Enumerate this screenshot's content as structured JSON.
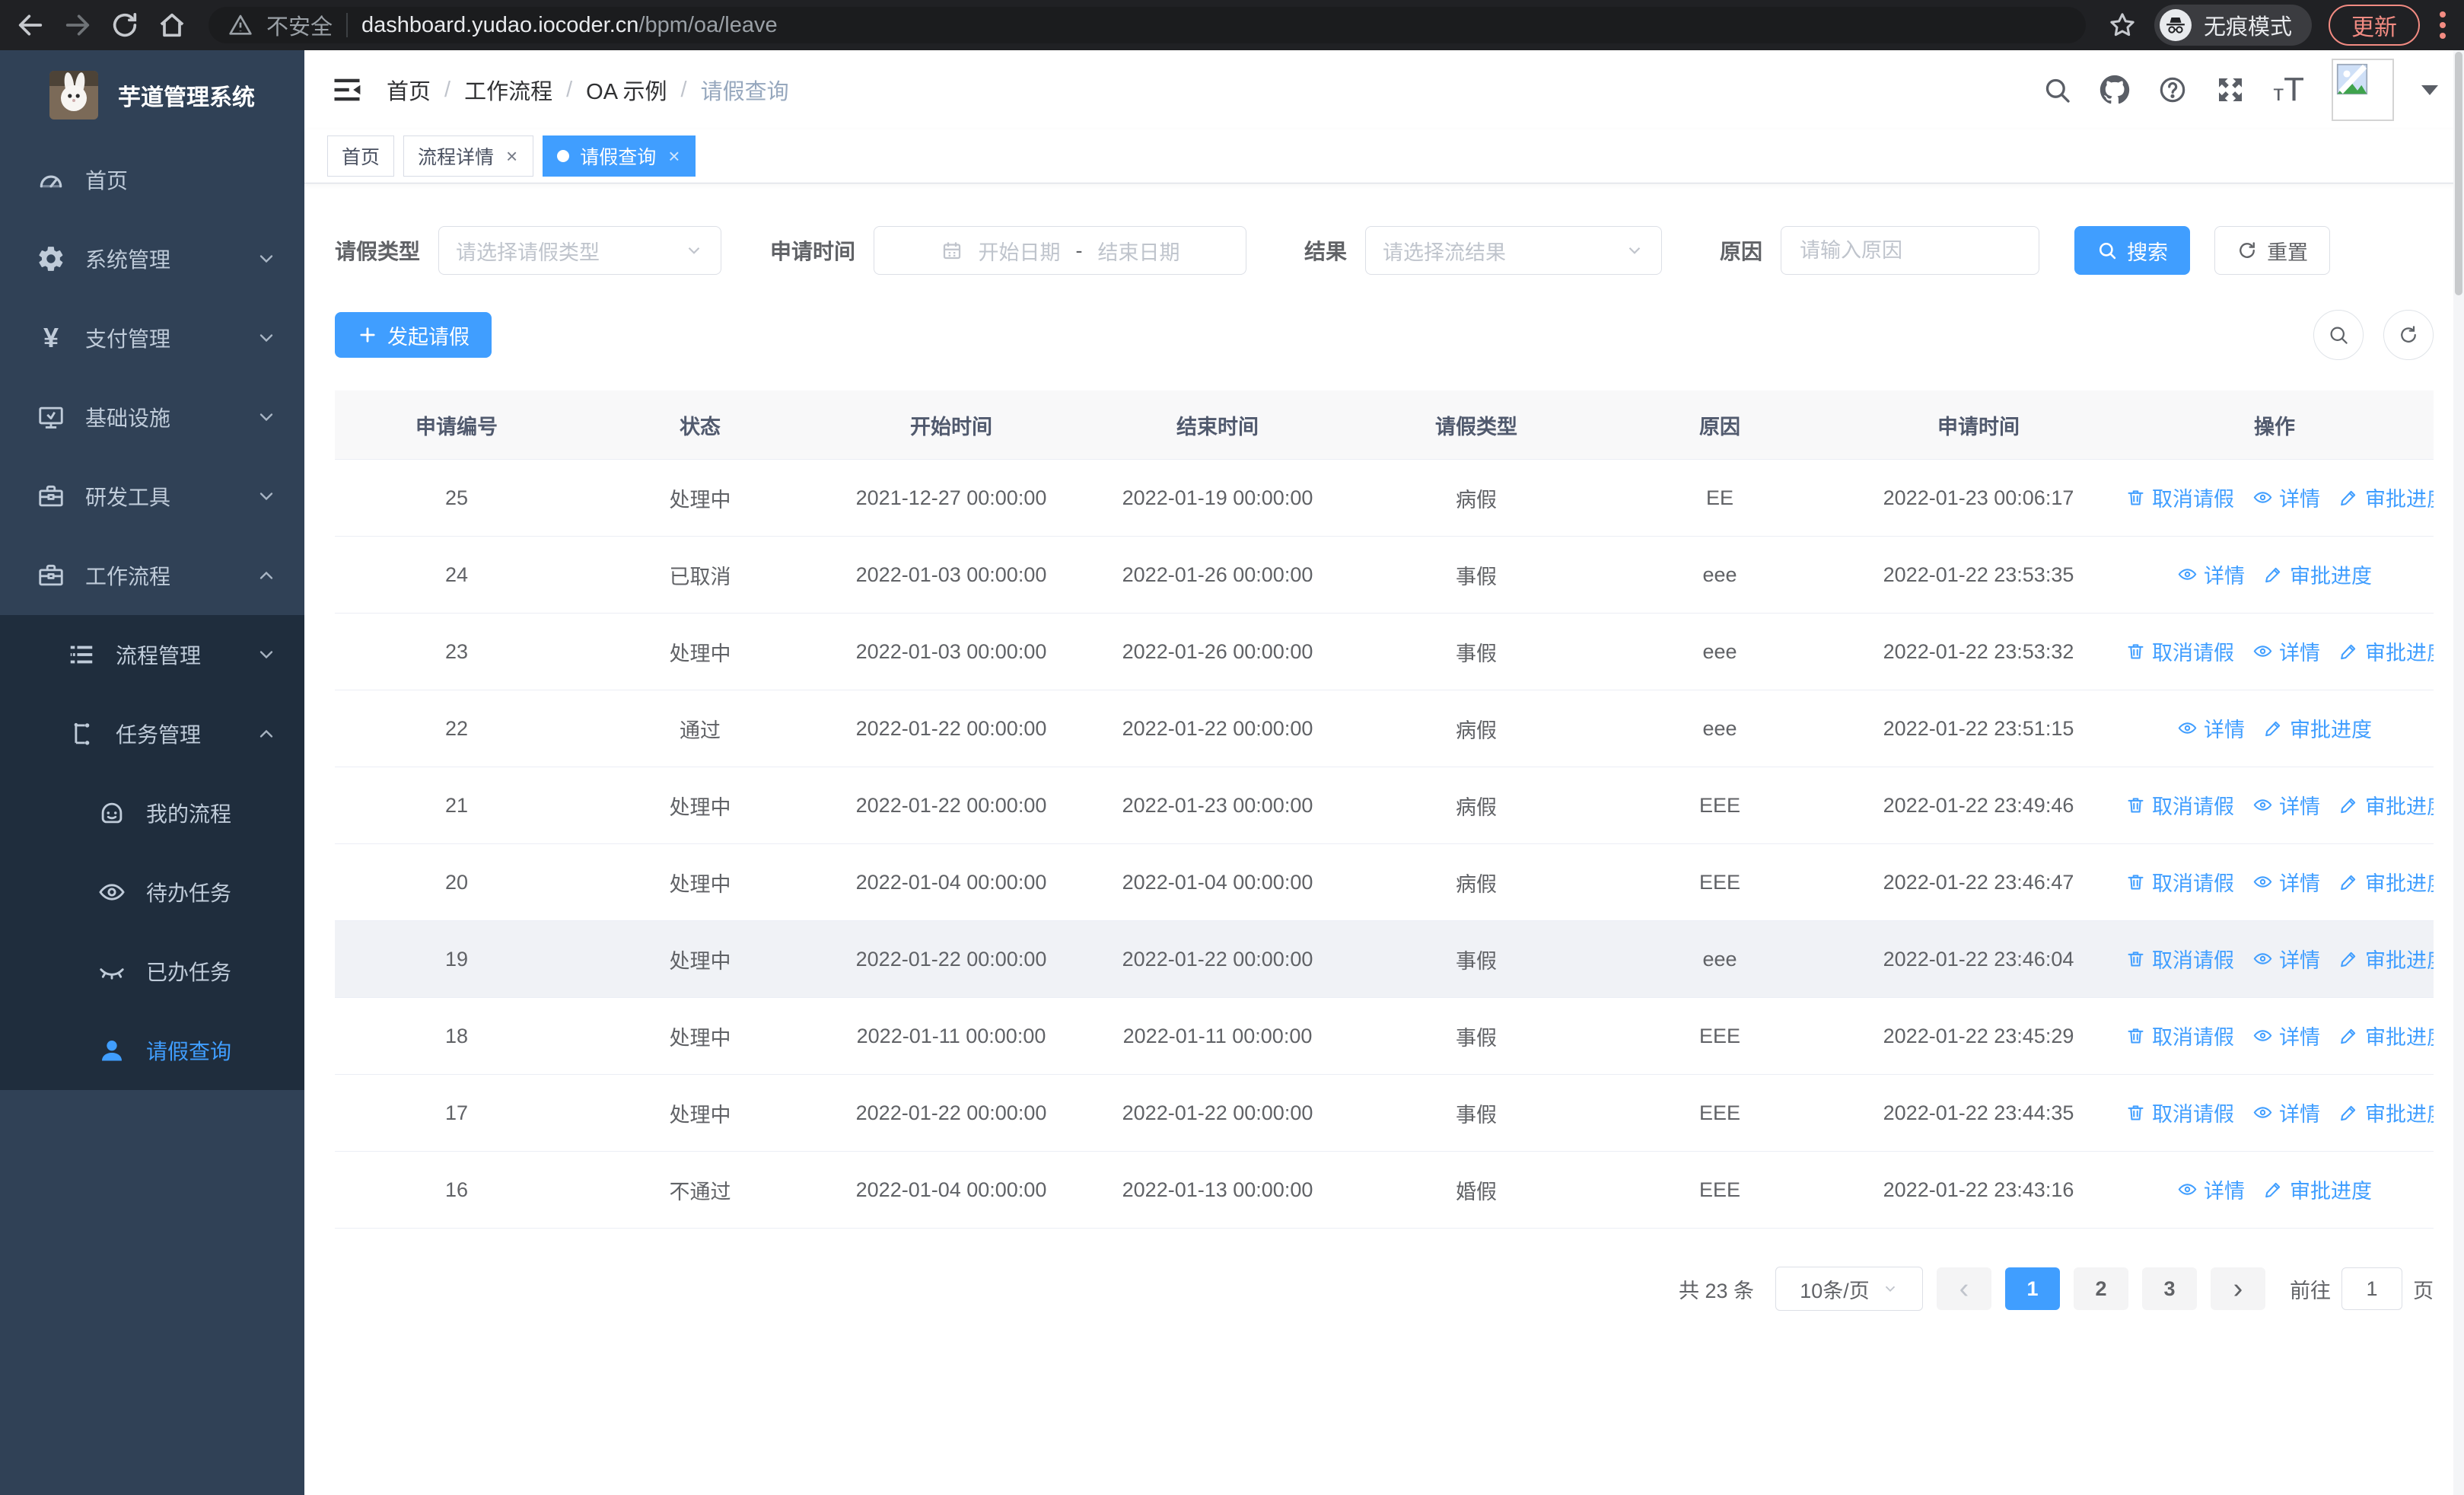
{
  "browser": {
    "security_label": "不安全",
    "url_host": "dashboard.yudao.iocoder.cn",
    "url_path": "/bpm/oa/leave",
    "incognito_label": "无痕模式",
    "update_label": "更新"
  },
  "colors": {
    "primary": "#409eff",
    "sidebar_bg": "#304156",
    "submenu_bg": "#1f2d3d",
    "sidebar_text": "#bfcbd9",
    "update_accent": "#f28b82"
  },
  "sidebar": {
    "title": "芋道管理系统",
    "items": [
      {
        "name": "home",
        "label": "首页",
        "icon": "dashboard-icon",
        "level": 1
      },
      {
        "name": "system-management",
        "label": "系统管理",
        "icon": "gear-icon",
        "level": 1,
        "arrow": "down"
      },
      {
        "name": "payment-management",
        "label": "支付管理",
        "icon": "yen-icon",
        "level": 1,
        "arrow": "down"
      },
      {
        "name": "infrastructure",
        "label": "基础设施",
        "icon": "monitor-icon",
        "level": 1,
        "arrow": "down"
      },
      {
        "name": "dev-tools",
        "label": "研发工具",
        "icon": "toolbox-icon",
        "level": 1,
        "arrow": "down"
      },
      {
        "name": "workflow",
        "label": "工作流程",
        "icon": "toolbox-icon",
        "level": 1,
        "arrow": "up"
      },
      {
        "name": "process-management",
        "label": "流程管理",
        "icon": "list-icon",
        "level": 2,
        "sub": true,
        "arrow": "down"
      },
      {
        "name": "task-management",
        "label": "任务管理",
        "icon": "tree-icon",
        "level": 2,
        "sub": true,
        "arrow": "up"
      },
      {
        "name": "my-process",
        "label": "我的流程",
        "icon": "robot-icon",
        "level": 3,
        "sub": true
      },
      {
        "name": "todo-tasks",
        "label": "待办任务",
        "icon": "eye-icon",
        "level": 3,
        "sub": true
      },
      {
        "name": "done-tasks",
        "label": "已办任务",
        "icon": "eye-closed-icon",
        "level": 3,
        "sub": true
      },
      {
        "name": "leave-query",
        "label": "请假查询",
        "icon": "user-icon",
        "level": 3,
        "sub": true,
        "active": true
      }
    ]
  },
  "header": {
    "breadcrumb": [
      {
        "label": "首页",
        "link": true
      },
      {
        "label": "工作流程"
      },
      {
        "label": "OA 示例"
      },
      {
        "label": "请假查询",
        "current": true
      }
    ]
  },
  "tabs": [
    {
      "name": "tab-home",
      "label": "首页",
      "closable": false,
      "active": false
    },
    {
      "name": "tab-process-detail",
      "label": "流程详情",
      "closable": true,
      "active": false
    },
    {
      "name": "tab-leave-query",
      "label": "请假查询",
      "closable": true,
      "active": true
    }
  ],
  "filters": {
    "leave_type_label": "请假类型",
    "leave_type_placeholder": "请选择请假类型",
    "apply_time_label": "申请时间",
    "start_placeholder": "开始日期",
    "range_separator": "-",
    "end_placeholder": "结束日期",
    "result_label": "结果",
    "result_placeholder": "请选择流结果",
    "reason_label": "原因",
    "reason_placeholder": "请输入原因",
    "search_label": "搜索",
    "reset_label": "重置"
  },
  "toolbar": {
    "create_label": "发起请假"
  },
  "table": {
    "columns": [
      "申请编号",
      "状态",
      "开始时间",
      "结束时间",
      "请假类型",
      "原因",
      "申请时间",
      "操作"
    ],
    "action_labels": {
      "cancel": "取消请假",
      "detail": "详情",
      "progress": "审批进度"
    },
    "rows": [
      {
        "id": "25",
        "status": "处理中",
        "start": "2021-12-27 00:00:00",
        "end": "2022-01-19 00:00:00",
        "type": "病假",
        "reason": "EE",
        "apply_time": "2022-01-23 00:06:17",
        "cancelable": true
      },
      {
        "id": "24",
        "status": "已取消",
        "start": "2022-01-03 00:00:00",
        "end": "2022-01-26 00:00:00",
        "type": "事假",
        "reason": "eee",
        "apply_time": "2022-01-22 23:53:35",
        "cancelable": false
      },
      {
        "id": "23",
        "status": "处理中",
        "start": "2022-01-03 00:00:00",
        "end": "2022-01-26 00:00:00",
        "type": "事假",
        "reason": "eee",
        "apply_time": "2022-01-22 23:53:32",
        "cancelable": true
      },
      {
        "id": "22",
        "status": "通过",
        "start": "2022-01-22 00:00:00",
        "end": "2022-01-22 00:00:00",
        "type": "病假",
        "reason": "eee",
        "apply_time": "2022-01-22 23:51:15",
        "cancelable": false
      },
      {
        "id": "21",
        "status": "处理中",
        "start": "2022-01-22 00:00:00",
        "end": "2022-01-23 00:00:00",
        "type": "病假",
        "reason": "EEE",
        "apply_time": "2022-01-22 23:49:46",
        "cancelable": true
      },
      {
        "id": "20",
        "status": "处理中",
        "start": "2022-01-04 00:00:00",
        "end": "2022-01-04 00:00:00",
        "type": "病假",
        "reason": "EEE",
        "apply_time": "2022-01-22 23:46:47",
        "cancelable": true
      },
      {
        "id": "19",
        "status": "处理中",
        "start": "2022-01-22 00:00:00",
        "end": "2022-01-22 00:00:00",
        "type": "事假",
        "reason": "eee",
        "apply_time": "2022-01-22 23:46:04",
        "cancelable": true,
        "highlighted": true
      },
      {
        "id": "18",
        "status": "处理中",
        "start": "2022-01-11 00:00:00",
        "end": "2022-01-11 00:00:00",
        "type": "事假",
        "reason": "EEE",
        "apply_time": "2022-01-22 23:45:29",
        "cancelable": true
      },
      {
        "id": "17",
        "status": "处理中",
        "start": "2022-01-22 00:00:00",
        "end": "2022-01-22 00:00:00",
        "type": "事假",
        "reason": "EEE",
        "apply_time": "2022-01-22 23:44:35",
        "cancelable": true
      },
      {
        "id": "16",
        "status": "不通过",
        "start": "2022-01-04 00:00:00",
        "end": "2022-01-13 00:00:00",
        "type": "婚假",
        "reason": "EEE",
        "apply_time": "2022-01-22 23:43:16",
        "cancelable": false
      }
    ]
  },
  "pagination": {
    "total_text": "共 23 条",
    "page_size_text": "10条/页",
    "prev_symbol": "‹",
    "next_symbol": "›",
    "pages": [
      "1",
      "2",
      "3"
    ],
    "active_page": "1",
    "goto_label": "前往",
    "goto_value": "1",
    "unit_label": "页"
  }
}
